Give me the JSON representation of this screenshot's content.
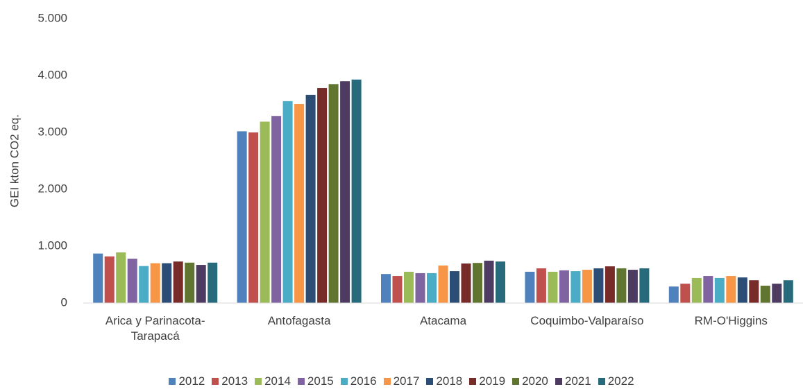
{
  "chart_data": {
    "type": "bar",
    "y_label": "GEI kton CO2 eq.",
    "categories": [
      "Arica y Parinacota-Tarapacá",
      "Antofagasta",
      "Atacama",
      "Coquimbo-Valparaíso",
      "RM-O'Higgins"
    ],
    "series": [
      {
        "name": "2012",
        "color": "#4f81bd",
        "values": [
          870,
          3020,
          510,
          550,
          290
        ]
      },
      {
        "name": "2013",
        "color": "#c0504d",
        "values": [
          820,
          3000,
          475,
          610,
          340
        ]
      },
      {
        "name": "2014",
        "color": "#9bbb59",
        "values": [
          890,
          3190,
          550,
          550,
          440
        ]
      },
      {
        "name": "2015",
        "color": "#8064a2",
        "values": [
          780,
          3290,
          525,
          575,
          475
        ]
      },
      {
        "name": "2016",
        "color": "#4bacc6",
        "values": [
          650,
          3550,
          525,
          560,
          440
        ]
      },
      {
        "name": "2017",
        "color": "#f79646",
        "values": [
          700,
          3500,
          660,
          585,
          475
        ]
      },
      {
        "name": "2018",
        "color": "#2c4d75",
        "values": [
          700,
          3660,
          560,
          610,
          450
        ]
      },
      {
        "name": "2019",
        "color": "#772c2a",
        "values": [
          730,
          3780,
          695,
          645,
          400
        ]
      },
      {
        "name": "2020",
        "color": "#5f7530",
        "values": [
          710,
          3850,
          705,
          610,
          305
        ]
      },
      {
        "name": "2021",
        "color": "#4d3b62",
        "values": [
          670,
          3900,
          745,
          585,
          340
        ]
      },
      {
        "name": "2022",
        "color": "#276a7c",
        "values": [
          710,
          3930,
          730,
          610,
          400
        ]
      }
    ],
    "ylim": [
      0,
      5000
    ],
    "yticks": [
      0,
      {
        "value": 1000,
        "label": "1.000"
      },
      {
        "value": 2000,
        "label": "2.000"
      },
      {
        "value": 3000,
        "label": "3.000"
      },
      {
        "value": 4000,
        "label": "4.000"
      },
      {
        "value": 5000,
        "label": "5.000"
      }
    ],
    "legend": "bottom"
  }
}
